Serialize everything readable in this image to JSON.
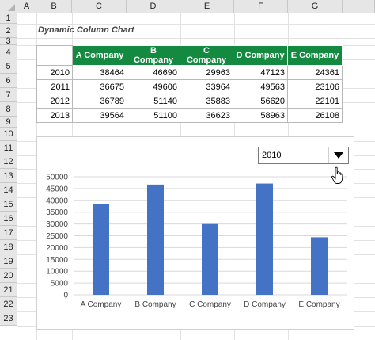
{
  "spreadsheet": {
    "columns": [
      "A",
      "B",
      "C",
      "D",
      "E",
      "F",
      "G"
    ],
    "rows": [
      "1",
      "2",
      "3",
      "4",
      "5",
      "6",
      "7",
      "8",
      "9",
      "10",
      "11",
      "12",
      "13",
      "14",
      "15",
      "16",
      "17",
      "18",
      "19",
      "20",
      "21",
      "22",
      "23"
    ]
  },
  "sheet_title": "Dynamic Column Chart",
  "table": {
    "headers": [
      "A Company",
      "B Company",
      "C Company",
      "D Company",
      "E Company"
    ],
    "rows": [
      {
        "year": "2010",
        "values": [
          "38464",
          "46690",
          "29963",
          "47123",
          "24361"
        ]
      },
      {
        "year": "2011",
        "values": [
          "36675",
          "49606",
          "33964",
          "49563",
          "23106"
        ]
      },
      {
        "year": "2012",
        "values": [
          "36789",
          "51140",
          "35883",
          "56620",
          "22101"
        ]
      },
      {
        "year": "2013",
        "values": [
          "39564",
          "51100",
          "36623",
          "58963",
          "26108"
        ]
      }
    ]
  },
  "selector": {
    "selected": "2010"
  },
  "chart_data": {
    "type": "bar",
    "categories": [
      "A Company",
      "B Company",
      "C Company",
      "D Company",
      "E Company"
    ],
    "values": [
      38464,
      46690,
      29963,
      47123,
      24361
    ],
    "yticks": [
      "0",
      "5000",
      "10000",
      "15000",
      "20000",
      "25000",
      "30000",
      "35000",
      "40000",
      "45000",
      "50000"
    ],
    "ylim": [
      0,
      50000
    ],
    "grid": true,
    "bar_color": "#4472c4"
  },
  "colors": {
    "header_green": "#138a3f",
    "bar": "#4472c4"
  }
}
